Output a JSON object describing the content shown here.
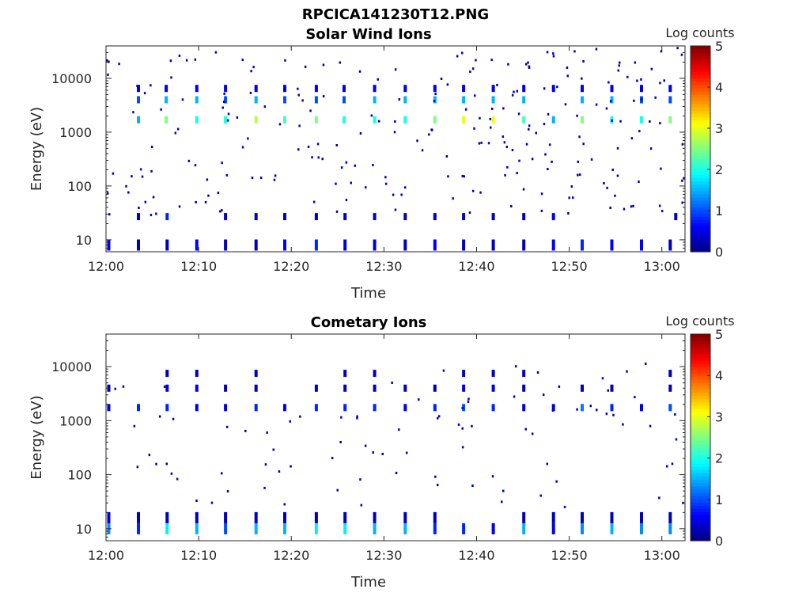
{
  "figure_title": "RPCICA141230T12.PNG",
  "colorbar": {
    "label": "Log counts",
    "ticks": [
      "0",
      "1",
      "2",
      "3",
      "4",
      "5"
    ],
    "range": [
      0,
      5
    ],
    "colormap": "jet"
  },
  "chart_data": [
    {
      "type": "heatmap",
      "title": "Solar Wind Ions",
      "xlabel": "Time",
      "ylabel": "Energy (eV)",
      "x_unit": "minutes after 12:00",
      "xlim": [
        0,
        62.5
      ],
      "ylim": [
        6,
        40000
      ],
      "y_scale": "log",
      "xticks": [
        "12:00",
        "12:10",
        "12:20",
        "12:30",
        "12:40",
        "12:50",
        "13:00"
      ],
      "yticks": [
        "10",
        "100",
        "1000",
        "10000"
      ],
      "bands": [
        {
          "energy": 1700,
          "times": [
            3.5,
            6.5,
            9.8,
            12.9,
            16.2,
            19.3,
            22.7,
            25.7,
            29.0,
            32.3,
            35.5,
            38.6,
            41.8,
            45.1,
            48.3,
            51.4,
            54.6,
            57.8,
            60.9
          ],
          "values": [
            1.5,
            2.5,
            2.0,
            2.0,
            2.8,
            2.2,
            2.5,
            2.0,
            2.0,
            2.0,
            2.5,
            3.0,
            3.0,
            2.2,
            1.5,
            2.5,
            2.0,
            2.0,
            2.5
          ]
        },
        {
          "energy": 4000,
          "times": [
            3.5,
            6.5,
            9.8,
            12.9,
            16.2,
            19.3,
            22.7,
            25.7,
            29.0,
            32.3,
            35.5,
            38.6,
            41.8,
            45.1,
            51.4,
            54.6,
            57.8,
            60.9
          ],
          "values": [
            1.0,
            1.5,
            1.5,
            1.0,
            1.5,
            1.0,
            1.0,
            1.0,
            1.5,
            1.5,
            1.5,
            1.5,
            1.5,
            1.5,
            1.5,
            1.5,
            1.0,
            1.0
          ]
        },
        {
          "energy": 6500,
          "times": [
            3.5,
            6.5,
            9.8,
            12.9,
            16.2,
            19.3,
            22.7,
            25.7,
            29.0,
            32.3,
            35.5,
            38.6,
            41.8,
            45.1,
            48.3,
            51.4,
            54.6,
            57.8,
            60.9
          ],
          "values": [
            0.5,
            0.5,
            0.5,
            0.5,
            0.5,
            0.5,
            0.5,
            0.5,
            0.5,
            0.5,
            0.5,
            0.5,
            0.5,
            0.5,
            0.5,
            0.5,
            0.5,
            0.5,
            0.5
          ]
        },
        {
          "energy": 8,
          "times": [
            0.3,
            3.5,
            6.6,
            9.8,
            12.9,
            16.2,
            19.3,
            22.7,
            25.8,
            29.0,
            32.3,
            35.5,
            38.6,
            41.8,
            45.1,
            48.3,
            51.4,
            54.6,
            57.8,
            60.9
          ],
          "values": [
            0.6,
            0.3,
            0.3,
            0.6,
            0.3,
            0.3,
            0.6,
            0.8,
            0.4,
            0.4,
            0.3,
            0.6,
            0.3,
            0.3,
            0.3,
            0.6,
            0.8,
            0.6,
            0.6,
            0.3
          ]
        },
        {
          "energy": 27,
          "times": [
            3.5,
            6.6,
            12.9,
            16.2,
            19.3,
            22.7,
            25.8,
            29.0,
            32.3,
            35.5,
            38.6,
            41.8,
            45.1,
            48.3,
            61.5
          ],
          "values": [
            0.3,
            0.8,
            0.3,
            0.3,
            0.3,
            0.3,
            0.3,
            0.3,
            0.3,
            0.3,
            0.3,
            0.3,
            0.3,
            0.6,
            0.3
          ]
        }
      ],
      "scatter": {
        "count": 240,
        "energy_range": [
          30,
          40000
        ],
        "value": 0.3
      }
    },
    {
      "type": "heatmap",
      "title": "Cometary Ions",
      "xlabel": "Time",
      "ylabel": "Energy (eV)",
      "x_unit": "minutes after 12:00",
      "xlim": [
        0,
        62.5
      ],
      "ylim": [
        6,
        40000
      ],
      "y_scale": "log",
      "xticks": [
        "12:00",
        "12:10",
        "12:20",
        "12:30",
        "12:40",
        "12:50",
        "13:00"
      ],
      "yticks": [
        "10",
        "100",
        "1000",
        "10000"
      ],
      "bands": [
        {
          "energy": 1750,
          "times": [
            0.3,
            3.5,
            6.6,
            9.8,
            12.9,
            16.2,
            19.3,
            22.7,
            25.8,
            29.0,
            32.3,
            35.5,
            38.6,
            41.8,
            45.1,
            48.3,
            51.4,
            54.6,
            57.8,
            60.9
          ],
          "values": [
            0.5,
            0.8,
            0.8,
            0.5,
            0.5,
            0.8,
            0.5,
            0.8,
            0.8,
            0.8,
            0.5,
            0.8,
            1.0,
            0.8,
            0.5,
            0.5,
            1.2,
            0.8,
            0.5,
            1.0
          ]
        },
        {
          "energy": 4000,
          "times": [
            0.3,
            6.6,
            9.8,
            12.9,
            16.2,
            22.7,
            25.8,
            29.0,
            32.3,
            35.5,
            38.6,
            41.8,
            45.1,
            51.4,
            54.6,
            60.9
          ],
          "values": [
            0.3,
            0.5,
            0.5,
            0.3,
            0.3,
            0.3,
            0.3,
            0.3,
            0.3,
            0.3,
            0.6,
            0.5,
            0.3,
            0.3,
            0.3,
            0.3
          ]
        },
        {
          "energy": 7500,
          "times": [
            6.6,
            9.8,
            16.2,
            25.8,
            29.0,
            38.6,
            41.8,
            45.1,
            60.9
          ],
          "values": [
            0.3,
            0.3,
            0.3,
            0.3,
            0.3,
            0.3,
            0.3,
            0.3,
            0.3
          ]
        },
        {
          "energy": 10,
          "times": [
            0.3,
            3.5,
            6.6,
            9.8,
            12.9,
            16.2,
            19.3,
            22.7,
            25.8,
            29.0,
            32.3,
            35.5,
            38.6,
            41.8,
            45.1,
            48.3,
            51.4,
            54.6,
            57.8,
            60.9
          ],
          "values": [
            1.3,
            0.8,
            1.8,
            1.5,
            1.0,
            1.5,
            1.5,
            1.8,
            1.8,
            1.5,
            1.5,
            0.8,
            0.8,
            0.5,
            1.5,
            0.5,
            1.3,
            1.5,
            1.3,
            1.3
          ]
        },
        {
          "energy": 16,
          "times": [
            0.3,
            3.5,
            6.6,
            9.8,
            12.9,
            16.2,
            19.3,
            22.7,
            25.8,
            29.0,
            32.3,
            35.5,
            45.1,
            48.3,
            51.4,
            54.6,
            57.8,
            60.9
          ],
          "values": [
            0.5,
            0.3,
            0.3,
            0.3,
            0.3,
            0.3,
            0.3,
            0.3,
            0.3,
            0.3,
            0.3,
            0.3,
            0.3,
            0.3,
            0.3,
            0.3,
            0.3,
            0.3
          ]
        }
      ],
      "scatter": {
        "count": 90,
        "energy_range": [
          25,
          12000
        ],
        "value": 0.3
      }
    }
  ]
}
